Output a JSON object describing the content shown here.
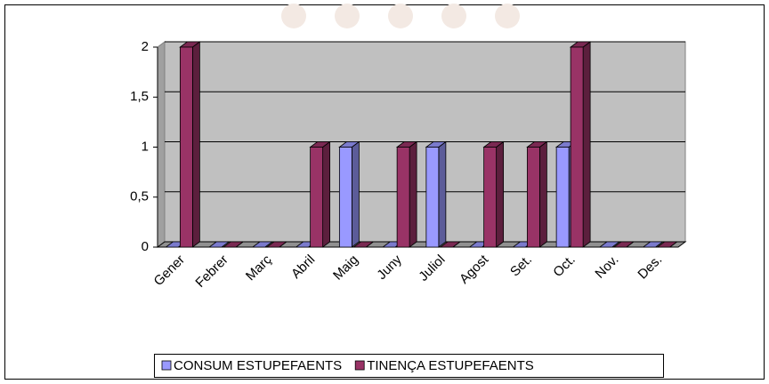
{
  "chart_data": {
    "type": "bar",
    "categories": [
      "Gener",
      "Febrer",
      "Març",
      "Abril",
      "Maig",
      "Juny",
      "Juliol",
      "Agost",
      "Set.",
      "Oct.",
      "Nov.",
      "Des."
    ],
    "series": [
      {
        "name": "CONSUM ESTUPEFAENTS",
        "color": "#9999ff",
        "values": [
          0,
          0,
          0,
          0,
          1,
          0,
          1,
          0,
          0,
          1,
          0,
          0
        ]
      },
      {
        "name": "TINENÇA ESTUPEFAENTS",
        "color": "#993366",
        "values": [
          2,
          0,
          0,
          1,
          0,
          1,
          0,
          1,
          1,
          2,
          0,
          0
        ]
      }
    ],
    "ylim": [
      0,
      2
    ],
    "yticks": [
      0,
      {
        "value": 0.5,
        "label": "0,5"
      },
      1,
      {
        "value": 1.5,
        "label": "1,5"
      },
      2
    ],
    "grid": true,
    "legend": "bottom"
  }
}
